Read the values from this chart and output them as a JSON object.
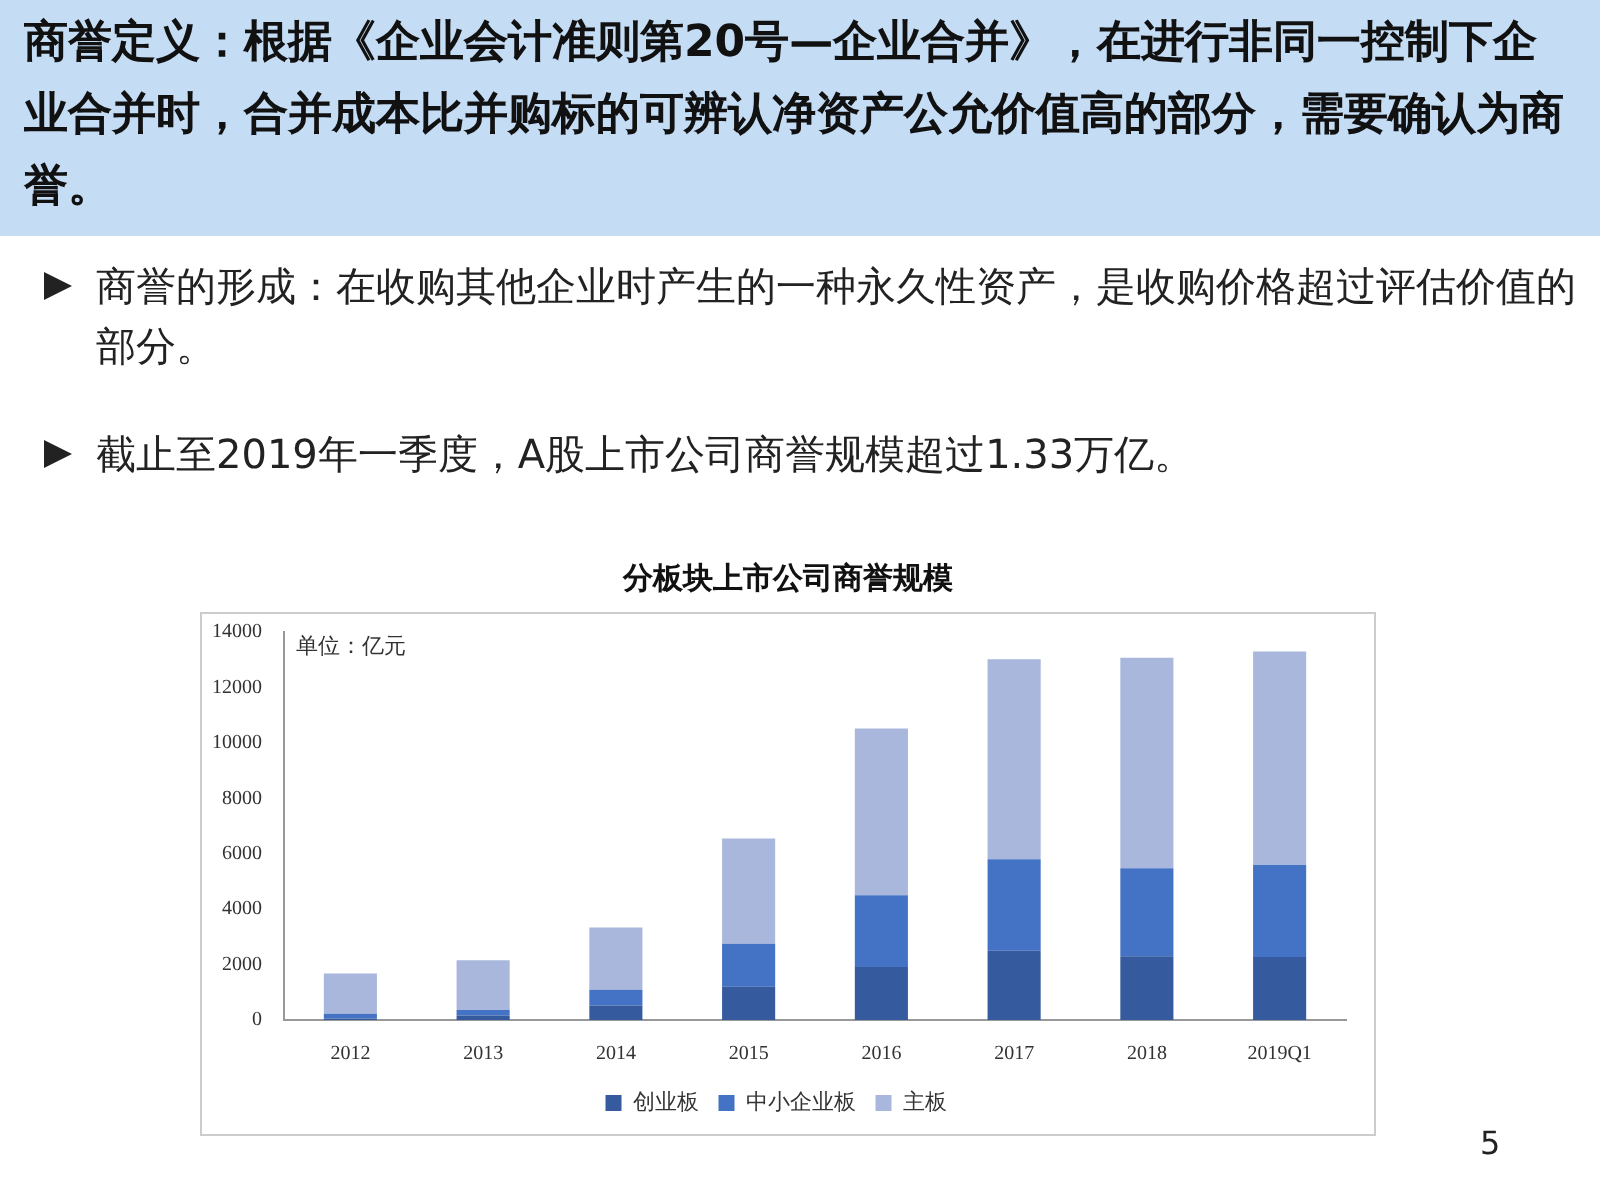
{
  "chart_data": {
    "type": "bar",
    "title": "分板块上市公司商誉规模",
    "annotations": [
      "商誉定义：根据《企业会计准则第20号—企业合并》，在进行非同一控制下企业合并时，合并成本比并购标的可辨认净资产公允价值高的部分，需要确认为商誉。",
      "商誉的形成：在收购其他企业时产生的一种永久性资产，是收购价格超过评估价值的部分。",
      "截止至2019年一季度，A股上市公司商誉规模超过1.33万亿。",
      "单位：亿元",
      "5"
    ],
    "categories": [
      "2012",
      "2013",
      "2014",
      "2015",
      "2016",
      "2017",
      "2018",
      "2019Q1"
    ],
    "stacked": true,
    "series": [
      {
        "name": "创业板",
        "color": "#355a9e",
        "values": [
          50,
          160,
          520,
          1200,
          1910,
          2500,
          2300,
          2270
        ]
      },
      {
        "name": "中小企业板",
        "color": "#4472c4",
        "values": [
          180,
          200,
          570,
          1550,
          2590,
          3300,
          3180,
          3320
        ]
      },
      {
        "name": "主板",
        "color": "#a9b7dc",
        "values": [
          1450,
          1800,
          2250,
          3800,
          6020,
          7220,
          7590,
          7710
        ]
      }
    ],
    "ylim": [
      0,
      14000
    ],
    "yticks": [
      0,
      2000,
      4000,
      6000,
      8000,
      10000,
      12000,
      14000
    ],
    "grid": false,
    "legend": "bottom"
  }
}
